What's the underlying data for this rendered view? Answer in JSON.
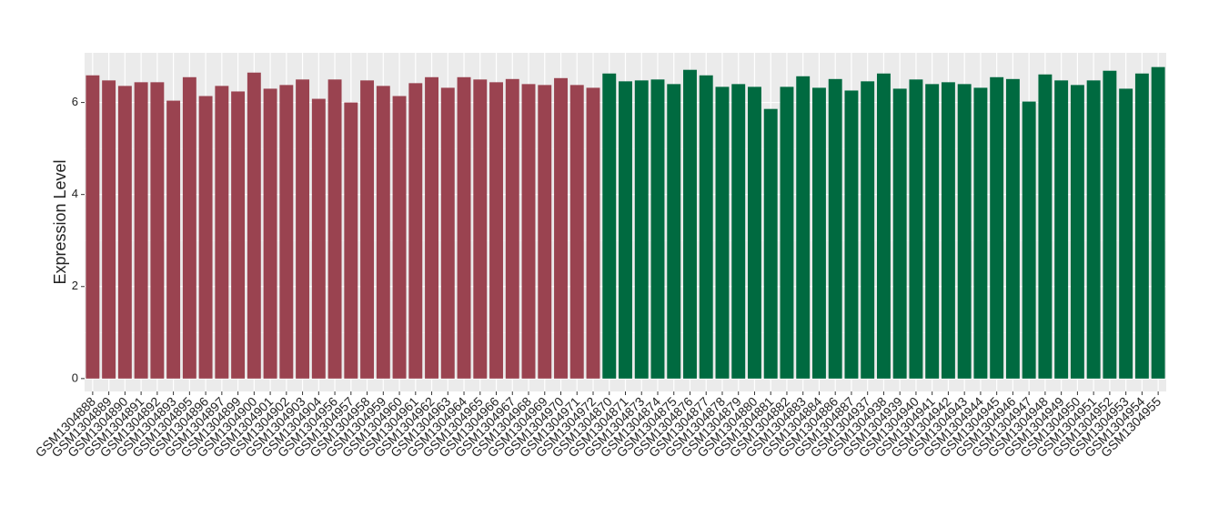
{
  "chart_data": {
    "type": "bar",
    "y_label": "Expression Level",
    "categories": [
      "GSM1304888",
      "GSM1304889",
      "GSM1304890",
      "GSM1304891",
      "GSM1304892",
      "GSM1304893",
      "GSM1304895",
      "GSM1304896",
      "GSM1304897",
      "GSM1304899",
      "GSM1304900",
      "GSM1304901",
      "GSM1304902",
      "GSM1304903",
      "GSM1304904",
      "GSM1304956",
      "GSM1304957",
      "GSM1304958",
      "GSM1304959",
      "GSM1304960",
      "GSM1304961",
      "GSM1304962",
      "GSM1304963",
      "GSM1304964",
      "GSM1304965",
      "GSM1304966",
      "GSM1304967",
      "GSM1304968",
      "GSM1304969",
      "GSM1304970",
      "GSM1304971",
      "GSM1304972",
      "GSM1304870",
      "GSM1304871",
      "GSM1304873",
      "GSM1304874",
      "GSM1304875",
      "GSM1304876",
      "GSM1304877",
      "GSM1304878",
      "GSM1304879",
      "GSM1304880",
      "GSM1304881",
      "GSM1304882",
      "GSM1304883",
      "GSM1304884",
      "GSM1304886",
      "GSM1304887",
      "GSM1304937",
      "GSM1304938",
      "GSM1304939",
      "GSM1304940",
      "GSM1304941",
      "GSM1304942",
      "GSM1304943",
      "GSM1304944",
      "GSM1304945",
      "GSM1304946",
      "GSM1304947",
      "GSM1304948",
      "GSM1304949",
      "GSM1304950",
      "GSM1304951",
      "GSM1304952",
      "GSM1304953",
      "GSM1304954",
      "GSM1304955"
    ],
    "values": [
      6.59,
      6.48,
      6.36,
      6.44,
      6.44,
      6.04,
      6.55,
      6.14,
      6.36,
      6.24,
      6.65,
      6.3,
      6.38,
      6.5,
      6.08,
      6.5,
      6.0,
      6.48,
      6.36,
      6.14,
      6.42,
      6.55,
      6.32,
      6.55,
      6.5,
      6.44,
      6.51,
      6.4,
      6.38,
      6.53,
      6.38,
      6.32,
      6.63,
      6.46,
      6.48,
      6.5,
      6.4,
      6.71,
      6.59,
      6.34,
      6.4,
      6.34,
      5.86,
      6.34,
      6.57,
      6.32,
      6.51,
      6.26,
      6.46,
      6.63,
      6.3,
      6.5,
      6.4,
      6.44,
      6.4,
      6.32,
      6.55,
      6.51,
      6.02,
      6.61,
      6.48,
      6.38,
      6.48,
      6.69,
      6.3,
      6.63,
      6.77
    ],
    "colors": [
      "#9a4350",
      "#9a4350",
      "#9a4350",
      "#9a4350",
      "#9a4350",
      "#9a4350",
      "#9a4350",
      "#9a4350",
      "#9a4350",
      "#9a4350",
      "#9a4350",
      "#9a4350",
      "#9a4350",
      "#9a4350",
      "#9a4350",
      "#9a4350",
      "#9a4350",
      "#9a4350",
      "#9a4350",
      "#9a4350",
      "#9a4350",
      "#9a4350",
      "#9a4350",
      "#9a4350",
      "#9a4350",
      "#9a4350",
      "#9a4350",
      "#9a4350",
      "#9a4350",
      "#9a4350",
      "#9a4350",
      "#9a4350",
      "#006a40",
      "#006a40",
      "#006a40",
      "#006a40",
      "#006a40",
      "#006a40",
      "#006a40",
      "#006a40",
      "#006a40",
      "#006a40",
      "#006a40",
      "#006a40",
      "#006a40",
      "#006a40",
      "#006a40",
      "#006a40",
      "#006a40",
      "#006a40",
      "#006a40",
      "#006a40",
      "#006a40",
      "#006a40",
      "#006a40",
      "#006a40",
      "#006a40",
      "#006a40",
      "#006a40",
      "#006a40",
      "#006a40",
      "#006a40",
      "#006a40",
      "#006a40",
      "#006a40",
      "#006a40",
      "#006a40"
    ],
    "ylim": [
      -0.28,
      7.08
    ],
    "yticks": [
      0,
      2,
      4,
      6
    ],
    "grid": true
  }
}
